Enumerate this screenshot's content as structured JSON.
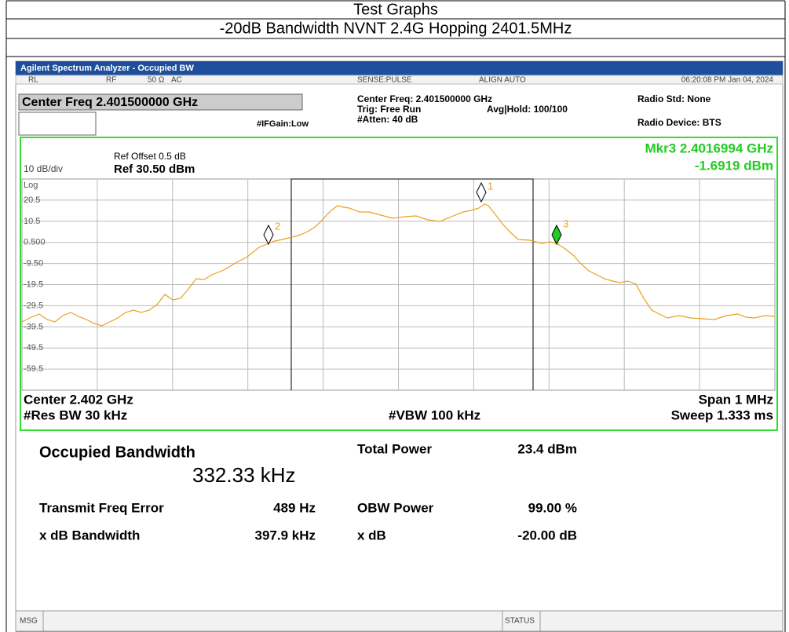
{
  "document": {
    "title": "Test Graphs",
    "subtitle": "-20dB Bandwidth NVNT 2.4G Hopping 2401.5MHz"
  },
  "analyzer": {
    "window_title": "Agilent Spectrum Analyzer - Occupied BW",
    "status": {
      "rl": "RL",
      "rf": "RF",
      "impedance": "50 Ω",
      "coupling": "AC",
      "sense": "SENSE:PULSE",
      "align": "ALIGN AUTO",
      "timestamp": "06:20:08 PM Jan 04, 2024"
    },
    "center_freq": "Center Freq 2.401500000 GHz",
    "settings": {
      "center": "Center Freq: 2.401500000 GHz",
      "trig": "Trig: Free Run",
      "atten": "#Atten: 40 dB",
      "avg": "Avg|Hold: 100/100",
      "ifgain": "#IFGain:Low",
      "radio_std": "Radio Std: None",
      "radio_device": "Radio Device: BTS"
    },
    "ref_offset": "Ref Offset 0.5 dB",
    "scale": "10 dB/div",
    "ref_level": "Ref 30.50 dBm",
    "marker_freq": "Mkr3  2.4016994 GHz",
    "marker_level": "-1.6919 dBm",
    "y_labels": [
      "Log",
      "20.5",
      "10.5",
      "0.500",
      "-9.50",
      "-19.5",
      "-29.5",
      "-39.5",
      "-49.5",
      "-59.5"
    ],
    "markers": [
      "1",
      "2",
      "3"
    ],
    "center": "Center  2.402 GHz",
    "res_bw": "#Res BW  30 kHz",
    "vbw": "#VBW  100 kHz",
    "span": "Span 1 MHz",
    "sweep": "Sweep  1.333 ms",
    "results": {
      "obw_label": "Occupied Bandwidth",
      "obw_value": "332.33 kHz",
      "total_power_label": "Total Power",
      "total_power": "23.4 dBm",
      "freq_error_label": "Transmit Freq Error",
      "freq_error": "489 Hz",
      "obw_power_label": "OBW Power",
      "obw_power": "99.00 %",
      "xdb_bw_label": "x dB Bandwidth",
      "xdb_bw": "397.9 kHz",
      "xdb_label": "x dB",
      "xdb": "-20.00 dB"
    },
    "msg": "MSG",
    "status_label": "STATUS"
  }
}
